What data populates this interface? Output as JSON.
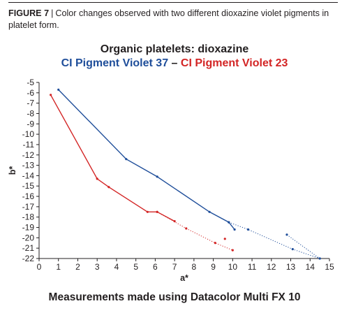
{
  "caption": {
    "figure_label": "FIGURE 7",
    "separator": "|",
    "text": "Color changes observed with two different dioxazine violet pigments in platelet form."
  },
  "footer": "Measurements made using Datacolor Multi FX 10",
  "chart_data": {
    "type": "line",
    "title": "Organic platelets: dioxazine",
    "subtitle_parts": [
      "CI Pigment Violet 37",
      " – ",
      "CI Pigment Violet 23"
    ],
    "xlabel": "a*",
    "ylabel": "b*",
    "xlim": [
      0,
      15
    ],
    "ylim": [
      -22,
      -5
    ],
    "xticks": [
      0,
      1,
      2,
      3,
      4,
      5,
      6,
      7,
      8,
      9,
      10,
      11,
      12,
      13,
      14,
      15
    ],
    "yticks": [
      -5,
      -6,
      -7,
      -8,
      -9,
      -10,
      -11,
      -12,
      -13,
      -14,
      -15,
      -16,
      -17,
      -18,
      -19,
      -20,
      -21,
      -22
    ],
    "grid": false,
    "series": [
      {
        "name": "CI Pigment Violet 37",
        "color": "#1f4e9a",
        "solid": [
          [
            1.0,
            -5.7
          ],
          [
            4.5,
            -12.4
          ],
          [
            6.1,
            -14.1
          ],
          [
            8.8,
            -17.5
          ],
          [
            9.8,
            -18.5
          ],
          [
            10.1,
            -19.2
          ]
        ],
        "dotted": [
          [
            9.8,
            -18.5
          ],
          [
            10.8,
            -19.2
          ],
          [
            13.1,
            -21.1
          ],
          [
            14.5,
            -22.0
          ]
        ],
        "dotted2": [
          [
            12.8,
            -19.7
          ],
          [
            14.5,
            -22.0
          ]
        ]
      },
      {
        "name": "CI Pigment Violet 23",
        "color": "#d32525",
        "solid": [
          [
            0.6,
            -6.2
          ],
          [
            3.0,
            -14.3
          ],
          [
            3.6,
            -15.1
          ],
          [
            5.6,
            -17.5
          ],
          [
            6.1,
            -17.5
          ],
          [
            7.0,
            -18.4
          ]
        ],
        "dotted": [
          [
            6.1,
            -17.5
          ],
          [
            7.6,
            -19.1
          ],
          [
            9.1,
            -20.5
          ],
          [
            10.0,
            -21.2
          ]
        ],
        "points": [
          [
            9.6,
            -20.1
          ]
        ]
      }
    ]
  }
}
